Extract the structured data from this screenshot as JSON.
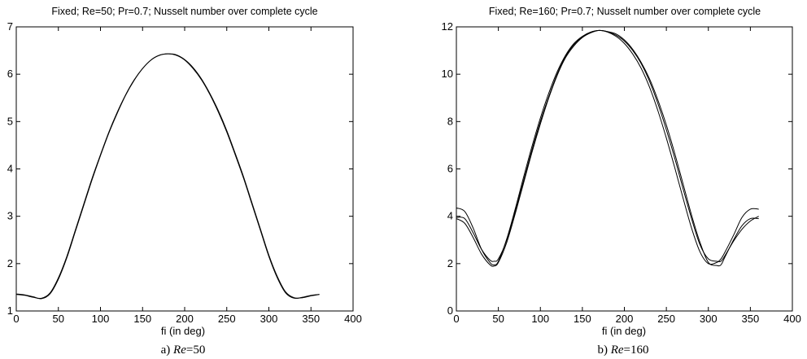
{
  "chart_data": [
    {
      "type": "line",
      "title": "Fixed; Re=50; Pr=0.7; Nusselt number over complete cycle",
      "xlabel": "fi (in deg)",
      "ylabel": "",
      "caption_prefix": "a) ",
      "caption_italic": "Re",
      "caption_suffix": "=50",
      "xlim": [
        0,
        400
      ],
      "ylim": [
        1,
        7
      ],
      "xticks": [
        "0",
        "50",
        "100",
        "150",
        "200",
        "250",
        "300",
        "350",
        "400"
      ],
      "yticks": [
        "1",
        "2",
        "3",
        "4",
        "5",
        "6",
        "7"
      ],
      "grid": false,
      "series": [
        {
          "x": [
            0,
            10,
            20,
            30,
            40,
            50,
            60,
            70,
            80,
            90,
            100,
            110,
            120,
            130,
            140,
            150,
            160,
            170,
            180,
            190,
            200,
            210,
            220,
            230,
            240,
            250,
            260,
            270,
            280,
            290,
            300,
            310,
            320,
            330,
            340,
            350,
            360
          ],
          "y": [
            1.35,
            1.33,
            1.29,
            1.27,
            1.38,
            1.7,
            2.15,
            2.7,
            3.25,
            3.8,
            4.3,
            4.78,
            5.2,
            5.57,
            5.88,
            6.12,
            6.3,
            6.4,
            6.43,
            6.4,
            6.3,
            6.12,
            5.88,
            5.57,
            5.2,
            4.78,
            4.3,
            3.8,
            3.25,
            2.7,
            2.15,
            1.7,
            1.38,
            1.27,
            1.29,
            1.33,
            1.35
          ]
        },
        {
          "x": [
            0,
            10,
            20,
            30,
            40,
            50,
            60,
            70,
            80,
            90,
            100,
            110,
            120,
            130,
            140,
            150,
            160,
            170,
            180,
            190,
            200,
            210,
            220,
            230,
            240,
            250,
            260,
            270,
            280,
            290,
            300,
            310,
            320,
            330,
            340,
            350,
            360
          ],
          "y": [
            1.36,
            1.34,
            1.3,
            1.26,
            1.36,
            1.67,
            2.12,
            2.67,
            3.22,
            3.77,
            4.28,
            4.76,
            5.18,
            5.56,
            5.87,
            6.12,
            6.3,
            6.4,
            6.43,
            6.41,
            6.31,
            6.14,
            5.9,
            5.59,
            5.23,
            4.81,
            4.33,
            3.83,
            3.28,
            2.73,
            2.18,
            1.73,
            1.4,
            1.28,
            1.28,
            1.32,
            1.35
          ]
        }
      ]
    },
    {
      "type": "line",
      "title": "Fixed; Re=160; Pr=0.7; Nusselt number over complete cycle",
      "xlabel": "fi (in deg)",
      "ylabel": "",
      "caption_prefix": "b) ",
      "caption_italic": "Re",
      "caption_suffix": "=160",
      "xlim": [
        0,
        400
      ],
      "ylim": [
        0,
        12
      ],
      "xticks": [
        "0",
        "50",
        "100",
        "150",
        "200",
        "250",
        "300",
        "350",
        "400"
      ],
      "yticks": [
        "0",
        "2",
        "4",
        "6",
        "8",
        "10",
        "12"
      ],
      "grid": false,
      "series": [
        {
          "x": [
            0,
            10,
            20,
            30,
            40,
            45,
            50,
            60,
            70,
            80,
            90,
            100,
            110,
            120,
            130,
            140,
            150,
            160,
            170,
            180,
            190,
            200,
            210,
            220,
            230,
            240,
            250,
            260,
            270,
            280,
            290,
            300,
            310,
            315,
            320,
            330,
            340,
            350,
            360
          ],
          "y": [
            3.9,
            3.7,
            3.1,
            2.4,
            1.95,
            1.9,
            2.05,
            2.9,
            4.1,
            5.4,
            6.7,
            7.9,
            9.0,
            9.95,
            10.7,
            11.2,
            11.55,
            11.75,
            11.85,
            11.8,
            11.7,
            11.45,
            11.05,
            10.5,
            9.8,
            8.9,
            7.85,
            6.65,
            5.35,
            4.05,
            2.9,
            2.05,
            1.92,
            1.95,
            2.3,
            3.0,
            3.6,
            3.9,
            3.9
          ]
        },
        {
          "x": [
            0,
            10,
            20,
            30,
            40,
            45,
            50,
            60,
            70,
            80,
            90,
            100,
            110,
            120,
            130,
            140,
            150,
            160,
            170,
            180,
            190,
            200,
            210,
            220,
            230,
            240,
            250,
            260,
            270,
            280,
            290,
            300,
            310,
            315,
            320,
            330,
            340,
            350,
            360
          ],
          "y": [
            4.35,
            4.2,
            3.5,
            2.6,
            2.05,
            1.95,
            2.1,
            3.05,
            4.3,
            5.65,
            6.95,
            8.15,
            9.2,
            10.1,
            10.8,
            11.3,
            11.6,
            11.78,
            11.85,
            11.78,
            11.6,
            11.3,
            10.85,
            10.25,
            9.45,
            8.45,
            7.3,
            6.05,
            4.75,
            3.5,
            2.5,
            2.0,
            2.05,
            2.2,
            2.5,
            3.2,
            3.95,
            4.3,
            4.3
          ]
        },
        {
          "x": [
            0,
            10,
            20,
            30,
            40,
            45,
            50,
            60,
            70,
            80,
            90,
            100,
            110,
            120,
            130,
            140,
            150,
            160,
            170,
            180,
            190,
            200,
            210,
            220,
            230,
            240,
            250,
            260,
            270,
            280,
            290,
            300,
            310,
            315,
            320,
            330,
            340,
            350,
            360
          ],
          "y": [
            3.95,
            3.9,
            3.3,
            2.6,
            2.15,
            2.1,
            2.2,
            3.0,
            4.2,
            5.5,
            6.8,
            8.0,
            9.05,
            10.0,
            10.75,
            11.25,
            11.58,
            11.77,
            11.85,
            11.8,
            11.65,
            11.4,
            11.0,
            10.45,
            9.7,
            8.75,
            7.65,
            6.45,
            5.15,
            3.9,
            2.8,
            2.2,
            2.1,
            2.1,
            2.35,
            2.95,
            3.45,
            3.8,
            4.0
          ]
        }
      ]
    }
  ]
}
